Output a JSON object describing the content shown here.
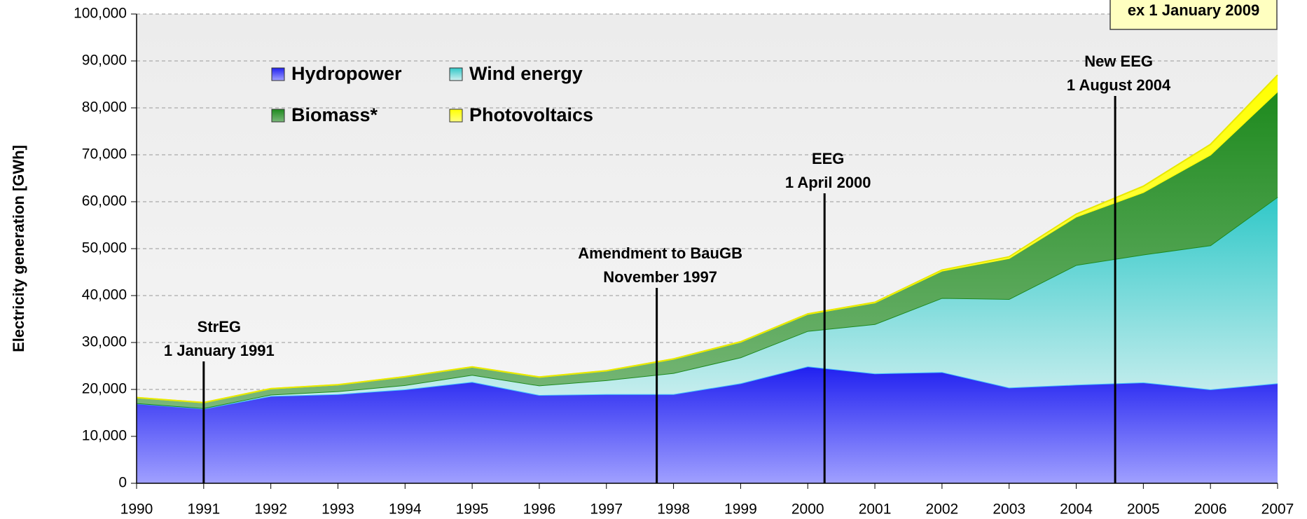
{
  "chart_data": {
    "type": "area",
    "stacked": true,
    "y_label": "Electricity generation [GWh]",
    "x": [
      1990,
      1991,
      1992,
      1993,
      1994,
      1995,
      1996,
      1997,
      1998,
      1999,
      2000,
      2001,
      2002,
      2003,
      2004,
      2005,
      2006,
      2007
    ],
    "xlim": [
      1990,
      2007
    ],
    "ylim": [
      0,
      100000
    ],
    "yticks": [
      0,
      {
        "value": 10000,
        "label": "10,000"
      },
      {
        "value": 20000,
        "label": "20,000"
      },
      {
        "value": 30000,
        "label": "30,000"
      },
      {
        "value": 40000,
        "label": "40,000"
      },
      {
        "value": 50000,
        "label": "50,000"
      },
      {
        "value": 60000,
        "label": "60,000"
      },
      {
        "value": 70000,
        "label": "70,000"
      },
      {
        "value": 80000,
        "label": "80,000"
      },
      {
        "value": 90000,
        "label": "90,000"
      },
      {
        "value": 100000,
        "label": "100,000"
      }
    ],
    "grid": true,
    "series": [
      {
        "name": "Hydropower",
        "color": "#3838f0",
        "values": [
          17000,
          15900,
          18600,
          19000,
          20000,
          21600,
          18800,
          19000,
          19000,
          21300,
          24900,
          23400,
          23700,
          20400,
          21000,
          21500,
          20000,
          21300
        ]
      },
      {
        "name": "Wind energy",
        "color": "#40cccc",
        "values": [
          71,
          100,
          275,
          600,
          909,
          1500,
          2032,
          2966,
          4489,
          5528,
          7550,
          10509,
          15786,
          18859,
          25509,
          27229,
          30710,
          39713
        ]
      },
      {
        "name": "Biomass*",
        "color": "#2e8b2e",
        "values": [
          1200,
          1200,
          1300,
          1400,
          1800,
          1700,
          1800,
          2000,
          3000,
          3300,
          3600,
          4600,
          5800,
          8700,
          10300,
          13300,
          19300,
          22500
        ]
      },
      {
        "name": "Photovoltaics",
        "color": "#ffff00",
        "values": [
          1,
          1,
          3,
          6,
          8,
          11,
          16,
          26,
          32,
          42,
          64,
          76,
          162,
          313,
          556,
          1282,
          2220,
          3500
        ]
      }
    ],
    "annotations": [
      {
        "x": 1991,
        "lines": [
          "StrEG",
          "1 January 1991"
        ]
      },
      {
        "x": 1997.75,
        "lines": [
          "Amendment to BauGB",
          "November 1997"
        ]
      },
      {
        "x": 2000.25,
        "lines": [
          "EEG",
          "1  April 2000"
        ]
      },
      {
        "x": 2004.58,
        "lines": [
          "New EEG",
          "1 August  2004"
        ]
      }
    ],
    "boxed_note": "ex 1 January 2009"
  }
}
